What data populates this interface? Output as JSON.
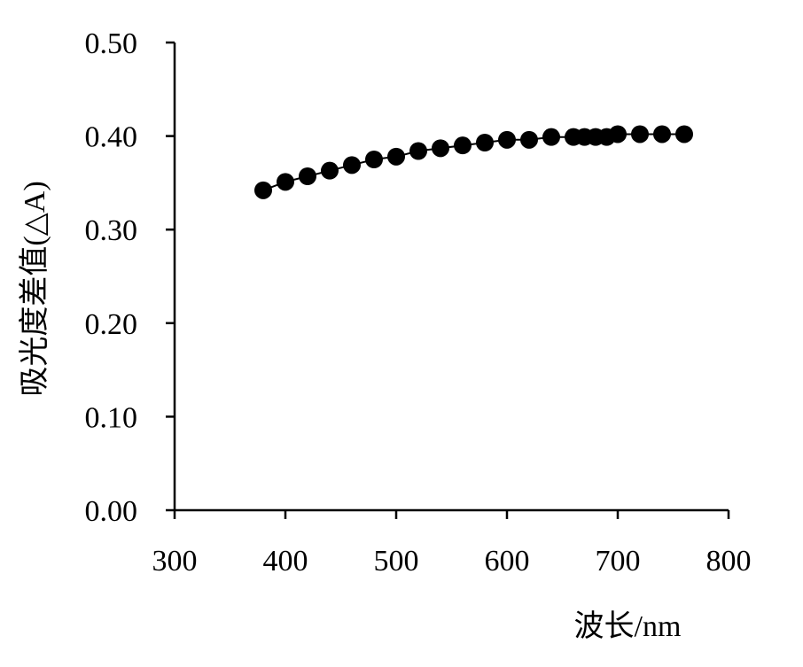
{
  "chart_data": {
    "type": "line",
    "xlabel": "波长/nm",
    "ylabel": "吸光度差值(△A)",
    "xlim": [
      300,
      800
    ],
    "ylim": [
      0.0,
      0.5
    ],
    "x_ticks": [
      300,
      400,
      500,
      600,
      700,
      800
    ],
    "x_tick_labels": [
      "300",
      "400",
      "500",
      "600",
      "700",
      "800"
    ],
    "y_ticks": [
      0.0,
      0.1,
      0.2,
      0.3,
      0.4,
      0.5
    ],
    "y_tick_labels": [
      "0.00",
      "0.10",
      "0.20",
      "0.30",
      "0.40",
      "0.50"
    ],
    "grid": false,
    "markers": "filled-circle",
    "series": [
      {
        "x": [
          380,
          400,
          420,
          440,
          460,
          480,
          500,
          520,
          540,
          560,
          580,
          600,
          620,
          640,
          660,
          670,
          680,
          690,
          700,
          720,
          740,
          760
        ],
        "y": [
          0.342,
          0.351,
          0.357,
          0.363,
          0.369,
          0.375,
          0.378,
          0.384,
          0.387,
          0.39,
          0.393,
          0.396,
          0.396,
          0.399,
          0.399,
          0.399,
          0.399,
          0.399,
          0.402,
          0.402,
          0.402,
          0.402
        ]
      }
    ],
    "color": "#000000"
  }
}
